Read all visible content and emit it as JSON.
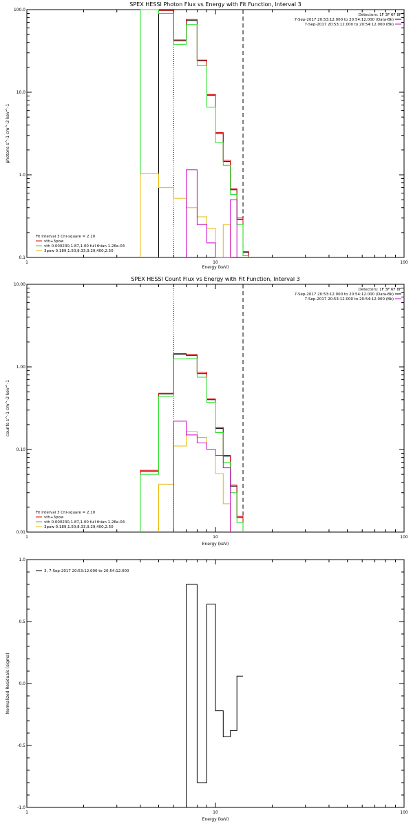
{
  "chart_data": [
    {
      "type": "line",
      "title": "SPEX HESSI Photon Flux vs Energy with Fit Function, Interval 3",
      "xlabel": "Energy (keV)",
      "ylabel": "photons s^-1 cm^-2 keV^-1",
      "xscale": "log",
      "yscale": "log",
      "xlim": [
        1,
        100
      ],
      "ylim": [
        0.1,
        100
      ],
      "xticks": [
        "1",
        "10",
        "100"
      ],
      "yticks": [
        "0.1",
        "1.0",
        "10.0",
        "100.0"
      ],
      "markers": [
        {
          "x": 6.0,
          "style": "dotted"
        },
        {
          "x": 14.0,
          "style": "dashed"
        }
      ],
      "header_lines": [
        "Detectors: 1F 3F 6F 8F",
        "7-Sep-2017 20:53:12.000 to 20:54:12.000 (Data-Bk)",
        "7-Sep-2017 20:53:12.000 to 20:54:12.000 (Bk)"
      ],
      "legend": [
        "Fit Interval 3  Chi-square = 2.10",
        "vth+3pow",
        "vth 0.000230,1.87,1.00  full thian 1.26e-04",
        "3pow 0.189,1.50,8.33,9.29,400,2.50"
      ],
      "legend_colors": [
        "#000000",
        "#dd0000",
        "#22dd22",
        "#e8b800"
      ],
      "legend_placement": "bottom-left",
      "series": [
        {
          "name": "data",
          "color": "#000000",
          "x": [
            4,
            5,
            6,
            7,
            8,
            9,
            10,
            11,
            12,
            13,
            14,
            15
          ],
          "values": [
            null,
            98,
            42,
            74,
            24,
            9.2,
            3.15,
            1.45,
            0.66,
            0.29,
            0.115,
            null
          ]
        },
        {
          "name": "vth+3pow",
          "color": "#dd0000",
          "x": [
            4,
            5,
            6,
            7,
            8,
            9,
            10,
            11,
            12,
            13,
            14,
            15
          ],
          "values": [
            100,
            98,
            43,
            76,
            24.5,
            9.4,
            3.25,
            1.5,
            0.68,
            0.3,
            0.118,
            null
          ]
        },
        {
          "name": "vth",
          "color": "#22dd22",
          "x": [
            4,
            5,
            6,
            7,
            8,
            9,
            10,
            11,
            12,
            13,
            14,
            15
          ],
          "values": [
            100,
            90,
            38,
            66,
            21,
            6.6,
            2.45,
            1.3,
            0.58,
            0.25,
            0.105,
            null
          ]
        },
        {
          "name": "3pow",
          "color": "#e8b800",
          "x": [
            4,
            5,
            6,
            7,
            8,
            9,
            10,
            11,
            12,
            13,
            14,
            15
          ],
          "values": [
            1.03,
            0.7,
            0.52,
            0.4,
            0.31,
            0.225,
            0.075,
            0.25,
            null,
            null,
            null,
            null
          ]
        },
        {
          "name": "background",
          "color": "#cc00cc",
          "x": [
            4,
            5,
            6,
            7,
            8,
            9,
            10,
            11,
            12,
            13,
            14,
            15
          ],
          "values": [
            null,
            null,
            null,
            1.15,
            0.25,
            0.15,
            0.085,
            0.067,
            0.5,
            null,
            null,
            null
          ]
        }
      ]
    },
    {
      "type": "line",
      "title": "SPEX HESSI Count Flux vs Energy with Fit Function, Interval 3",
      "xlabel": "Energy (keV)",
      "ylabel": "counts s^-1 cm^-2 keV^-1",
      "xscale": "log",
      "yscale": "log",
      "xlim": [
        1,
        100
      ],
      "ylim": [
        0.01,
        10
      ],
      "xticks": [
        "1",
        "10",
        "100"
      ],
      "yticks": [
        "0.01",
        "0.10",
        "1.00",
        "10.00"
      ],
      "markers": [
        {
          "x": 6.0,
          "style": "dotted"
        },
        {
          "x": 14.0,
          "style": "dashed"
        }
      ],
      "header_lines": [
        "Detectors: 1F 3F 6F 8F",
        "7-Sep-2017 20:53:12.000 to 20:54:12.000 (Data-Bk)",
        "7-Sep-2017 20:53:12.000 to 20:54:12.000 (Bk)"
      ],
      "legend": [
        "Fit Interval 3  Chi-square = 2.10",
        "vth+3pow",
        "vth 0.000230,1.87,1.00  full thian 1.26e-04",
        "3pow 0.189,1.50,8.33,9.29,400,2.50"
      ],
      "legend_colors": [
        "#000000",
        "#dd0000",
        "#22dd22",
        "#e8b800"
      ],
      "legend_placement": "bottom-left",
      "series": [
        {
          "name": "data",
          "color": "#000000",
          "x": [
            4,
            5,
            6,
            7,
            8,
            9,
            10,
            11,
            12,
            13,
            14,
            15
          ],
          "values": [
            0.054,
            0.47,
            1.42,
            1.38,
            0.83,
            0.4,
            0.18,
            0.083,
            0.036,
            0.015,
            null,
            null
          ]
        },
        {
          "name": "vth+3pow",
          "color": "#dd0000",
          "x": [
            4,
            5,
            6,
            7,
            8,
            9,
            10,
            11,
            12,
            13,
            14,
            15
          ],
          "values": [
            0.056,
            0.48,
            1.45,
            1.41,
            0.86,
            0.41,
            0.185,
            0.085,
            0.037,
            0.0155,
            null,
            null
          ]
        },
        {
          "name": "vth",
          "color": "#22dd22",
          "x": [
            4,
            5,
            6,
            7,
            8,
            9,
            10,
            11,
            12,
            13,
            14,
            15
          ],
          "values": [
            0.05,
            0.44,
            1.25,
            1.26,
            0.75,
            0.37,
            0.16,
            0.07,
            0.03,
            0.013,
            null,
            null
          ]
        },
        {
          "name": "3pow",
          "color": "#e8b800",
          "x": [
            4,
            5,
            6,
            7,
            8,
            9,
            10,
            11,
            12,
            13,
            14,
            15
          ],
          "values": [
            null,
            0.038,
            0.11,
            0.165,
            0.14,
            0.1,
            0.051,
            0.022,
            null,
            null,
            null,
            null
          ]
        },
        {
          "name": "background",
          "color": "#cc00cc",
          "x": [
            4,
            5,
            6,
            7,
            8,
            9,
            10,
            11,
            12,
            13,
            14,
            15
          ],
          "values": [
            null,
            null,
            0.22,
            0.15,
            0.12,
            0.1,
            0.085,
            0.06,
            null,
            null,
            null,
            null
          ]
        }
      ]
    },
    {
      "type": "line",
      "title": "",
      "xlabel": "Energy (keV)",
      "ylabel": "Normalized Residuals (sigma)",
      "xscale": "log",
      "yscale": "linear",
      "xlim": [
        1,
        100
      ],
      "ylim": [
        -1.0,
        1.0
      ],
      "xticks": [
        "1",
        "10",
        "100"
      ],
      "yticks": [
        "-1.0",
        "-0.5",
        "0.0",
        "0.5",
        "1.0"
      ],
      "legend": [
        "3,  7-Sep-2017 20:53:12.000 to 20:54:12.000"
      ],
      "legend_placement": "top-left",
      "series": [
        {
          "name": "3,  7-Sep-2017 20:53:12.000 to 20:54:12.000",
          "color": "#000000",
          "x": [
            6,
            7,
            8,
            9,
            10,
            11,
            12,
            13,
            14
          ],
          "values": [
            -1.0,
            0.8,
            -0.8,
            0.64,
            -0.22,
            -0.43,
            -0.38,
            0.06,
            -1.0
          ]
        }
      ]
    }
  ]
}
